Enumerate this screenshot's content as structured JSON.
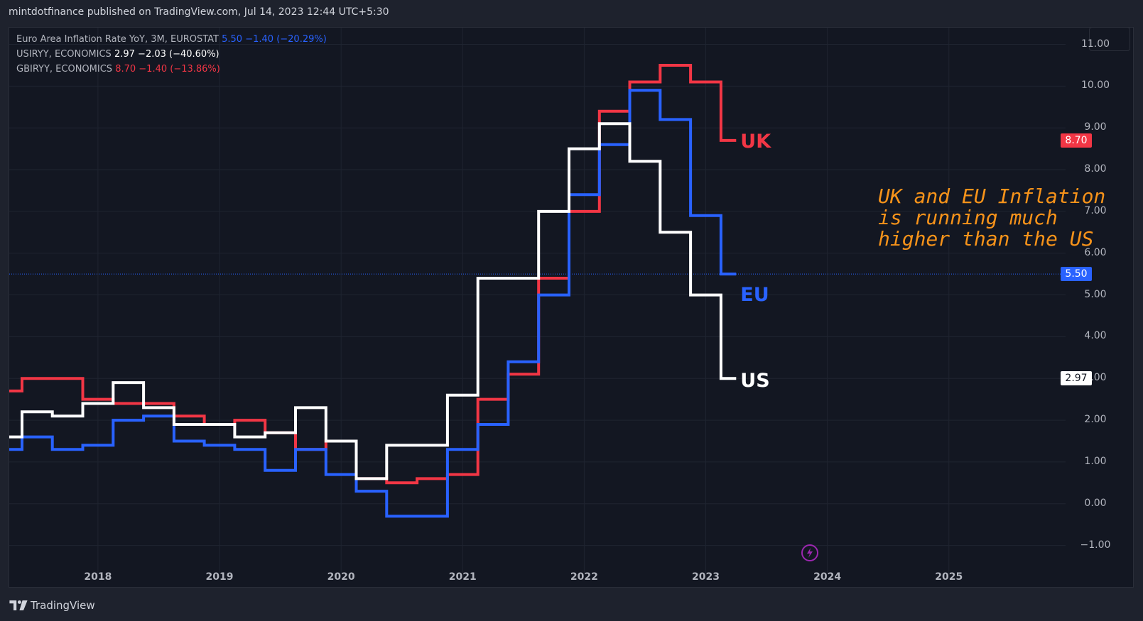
{
  "header": {
    "publisher_text": "mintdotfinance published on TradingView.com, Jul 14, 2023 12:44 UTC+5:30"
  },
  "legend": [
    {
      "name": "Euro Area Inflation Rate YoY, 3M, EUROSTAT",
      "value": "5.50",
      "change": "−1.40 (−20.29%)",
      "color": "#2962ff"
    },
    {
      "name": "USIRYY, ECONOMICS",
      "value": "2.97",
      "change": "−2.03 (−40.60%)",
      "color": "#ffffff"
    },
    {
      "name": "GBIRYY, ECONOMICS",
      "value": "8.70",
      "change": "−1.40 (−13.86%)",
      "color": "#f23645"
    }
  ],
  "price_badges": {
    "uk": "8.70",
    "eu": "5.50",
    "us": "2.97"
  },
  "series_labels": {
    "uk": "UK",
    "eu": "EU",
    "us": "US"
  },
  "annotation": {
    "line1": "UK and EU Inflation",
    "line2": "is running much",
    "line3": "higher than the US"
  },
  "footer": {
    "brand": "TradingView"
  },
  "icons": {
    "top_right": "chart-settings-icon",
    "flash": "lightning-icon",
    "logo": "tradingview-logo-icon"
  },
  "colors": {
    "background": "#131722",
    "eu": "#2962ff",
    "us": "#ffffff",
    "uk": "#f23645",
    "annotation": "#f7931a",
    "grid": "#1f2430"
  },
  "chart_data": {
    "type": "line",
    "style": "step",
    "x_unit": "year",
    "xlim": [
      2017.27,
      2025.96
    ],
    "ylim": [
      -1.67,
      11.4
    ],
    "x_ticks": [
      "2018",
      "2019",
      "2020",
      "2021",
      "2022",
      "2023",
      "2024",
      "2025"
    ],
    "y_ticks": [
      "11.00",
      "10.00",
      "9.00",
      "8.00",
      "7.00",
      "6.00",
      "5.00",
      "4.00",
      "3.00",
      "2.00",
      "1.00",
      "0.00",
      "−1.00"
    ],
    "grid": true,
    "series": [
      {
        "name": "GBIRYY, ECONOMICS",
        "key": "uk",
        "color": "#f23645",
        "points": [
          [
            2017.27,
            2.7
          ],
          [
            2017.375,
            3.0
          ],
          [
            2017.875,
            2.5
          ],
          [
            2018.125,
            2.4
          ],
          [
            2018.625,
            2.1
          ],
          [
            2018.875,
            1.9
          ],
          [
            2019.125,
            2.0
          ],
          [
            2019.375,
            1.7
          ],
          [
            2019.625,
            1.3
          ],
          [
            2019.875,
            1.5
          ],
          [
            2020.125,
            0.6
          ],
          [
            2020.375,
            0.5
          ],
          [
            2020.625,
            0.6
          ],
          [
            2020.875,
            0.7
          ],
          [
            2021.125,
            2.5
          ],
          [
            2021.375,
            3.1
          ],
          [
            2021.625,
            5.4
          ],
          [
            2021.875,
            7.0
          ],
          [
            2022.125,
            9.4
          ],
          [
            2022.375,
            10.1
          ],
          [
            2022.625,
            10.5
          ],
          [
            2022.875,
            10.1
          ],
          [
            2023.125,
            8.7
          ],
          [
            2023.25,
            8.7
          ]
        ]
      },
      {
        "name": "Euro Area Inflation Rate YoY, 3M, EUROSTAT",
        "key": "eu",
        "color": "#2962ff",
        "points": [
          [
            2017.27,
            1.3
          ],
          [
            2017.375,
            1.6
          ],
          [
            2017.625,
            1.3
          ],
          [
            2017.875,
            1.4
          ],
          [
            2018.125,
            2.0
          ],
          [
            2018.375,
            2.1
          ],
          [
            2018.625,
            1.5
          ],
          [
            2018.875,
            1.4
          ],
          [
            2019.125,
            1.3
          ],
          [
            2019.375,
            0.8
          ],
          [
            2019.625,
            1.3
          ],
          [
            2019.875,
            0.7
          ],
          [
            2020.125,
            0.3
          ],
          [
            2020.375,
            -0.3
          ],
          [
            2020.875,
            1.3
          ],
          [
            2021.125,
            1.9
          ],
          [
            2021.375,
            3.4
          ],
          [
            2021.625,
            5.0
          ],
          [
            2021.875,
            7.4
          ],
          [
            2022.125,
            8.6
          ],
          [
            2022.375,
            9.9
          ],
          [
            2022.625,
            9.2
          ],
          [
            2022.875,
            6.9
          ],
          [
            2023.125,
            5.5
          ],
          [
            2023.25,
            5.5
          ]
        ]
      },
      {
        "name": "USIRYY, ECONOMICS",
        "key": "us",
        "color": "#ffffff",
        "points": [
          [
            2017.27,
            1.6
          ],
          [
            2017.375,
            2.2
          ],
          [
            2017.625,
            2.1
          ],
          [
            2017.875,
            2.4
          ],
          [
            2018.125,
            2.9
          ],
          [
            2018.375,
            2.3
          ],
          [
            2018.625,
            1.9
          ],
          [
            2019.125,
            1.6
          ],
          [
            2019.375,
            1.7
          ],
          [
            2019.625,
            2.3
          ],
          [
            2019.875,
            1.5
          ],
          [
            2020.125,
            0.6
          ],
          [
            2020.375,
            1.4
          ],
          [
            2020.875,
            2.6
          ],
          [
            2021.125,
            5.4
          ],
          [
            2021.625,
            7.0
          ],
          [
            2021.875,
            8.5
          ],
          [
            2022.125,
            9.1
          ],
          [
            2022.375,
            8.2
          ],
          [
            2022.625,
            6.5
          ],
          [
            2022.875,
            5.0
          ],
          [
            2023.125,
            3.0
          ],
          [
            2023.25,
            3.0
          ]
        ]
      }
    ],
    "reference_line": {
      "y": 5.5,
      "color": "#2962ff",
      "style": "dotted"
    }
  }
}
